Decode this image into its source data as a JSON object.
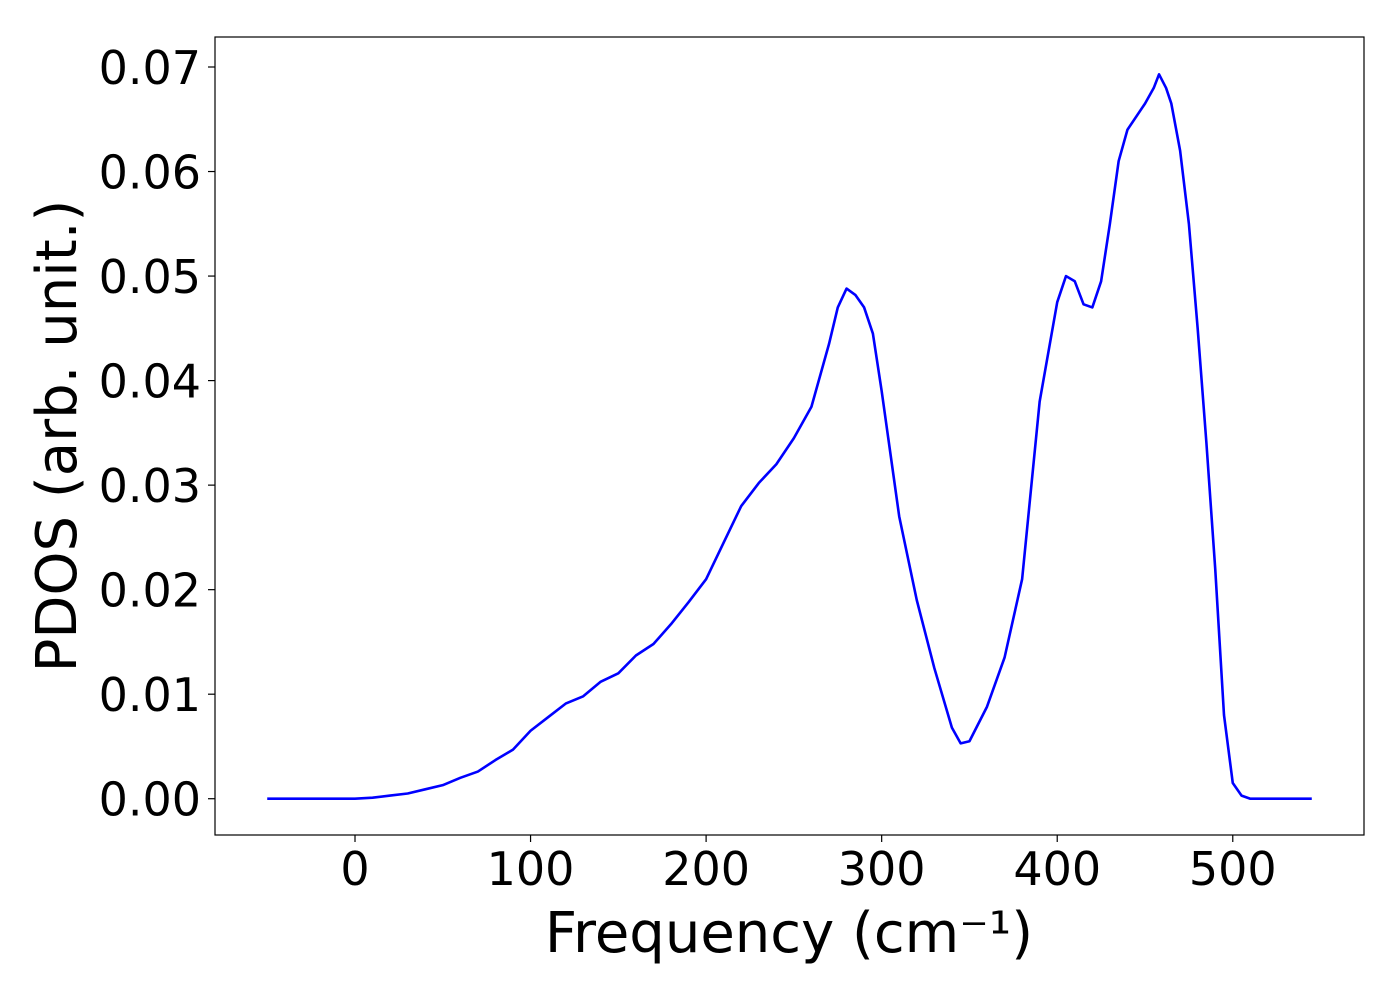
{
  "chart_data": {
    "type": "line",
    "xlabel": "Frequency (cm⁻¹)",
    "ylabel": "PDOS (arb. unit.)",
    "x": [
      -50,
      -40,
      -30,
      -20,
      -10,
      0,
      10,
      20,
      30,
      40,
      50,
      60,
      70,
      80,
      90,
      100,
      110,
      120,
      130,
      140,
      150,
      160,
      170,
      180,
      190,
      200,
      210,
      220,
      230,
      240,
      250,
      260,
      270,
      275,
      280,
      285,
      290,
      295,
      300,
      310,
      320,
      330,
      340,
      345,
      350,
      360,
      370,
      380,
      390,
      400,
      405,
      410,
      415,
      420,
      425,
      430,
      435,
      440,
      450,
      455,
      458,
      462,
      465,
      470,
      475,
      480,
      485,
      490,
      495,
      500,
      505,
      510,
      520,
      545
    ],
    "series": [
      {
        "name": "PDOS",
        "color": "#0000ff",
        "values": [
          0,
          0,
          0,
          0,
          0,
          0,
          0.0001,
          0.0003,
          0.0005,
          0.0009,
          0.0013,
          0.002,
          0.0026,
          0.0037,
          0.0047,
          0.0065,
          0.0078,
          0.0091,
          0.0098,
          0.0112,
          0.012,
          0.0137,
          0.0148,
          0.0167,
          0.0188,
          0.021,
          0.0245,
          0.028,
          0.0302,
          0.032,
          0.0345,
          0.0375,
          0.0435,
          0.047,
          0.0488,
          0.0482,
          0.047,
          0.0445,
          0.039,
          0.027,
          0.019,
          0.0125,
          0.0068,
          0.0053,
          0.0055,
          0.0088,
          0.0135,
          0.021,
          0.038,
          0.0475,
          0.05,
          0.0495,
          0.0473,
          0.047,
          0.0495,
          0.055,
          0.061,
          0.064,
          0.0665,
          0.068,
          0.0693,
          0.068,
          0.0665,
          0.062,
          0.055,
          0.045,
          0.034,
          0.022,
          0.008,
          0.0015,
          0.0003,
          0,
          0,
          0
        ]
      }
    ],
    "xlim": [
      -79.75,
      574.75
    ],
    "xticks": [
      0,
      100,
      200,
      300,
      400,
      500
    ],
    "ylim": [
      -0.00347,
      0.07287
    ],
    "yticks": [
      {
        "value": 0,
        "label": "0.00"
      },
      {
        "value": 0.01,
        "label": "0.01"
      },
      {
        "value": 0.02,
        "label": "0.02"
      },
      {
        "value": 0.03,
        "label": "0.03"
      },
      {
        "value": 0.04,
        "label": "0.04"
      },
      {
        "value": 0.05,
        "label": "0.05"
      },
      {
        "value": 0.06,
        "label": "0.06"
      },
      {
        "value": 0.07,
        "label": "0.07"
      }
    ],
    "grid": false
  }
}
